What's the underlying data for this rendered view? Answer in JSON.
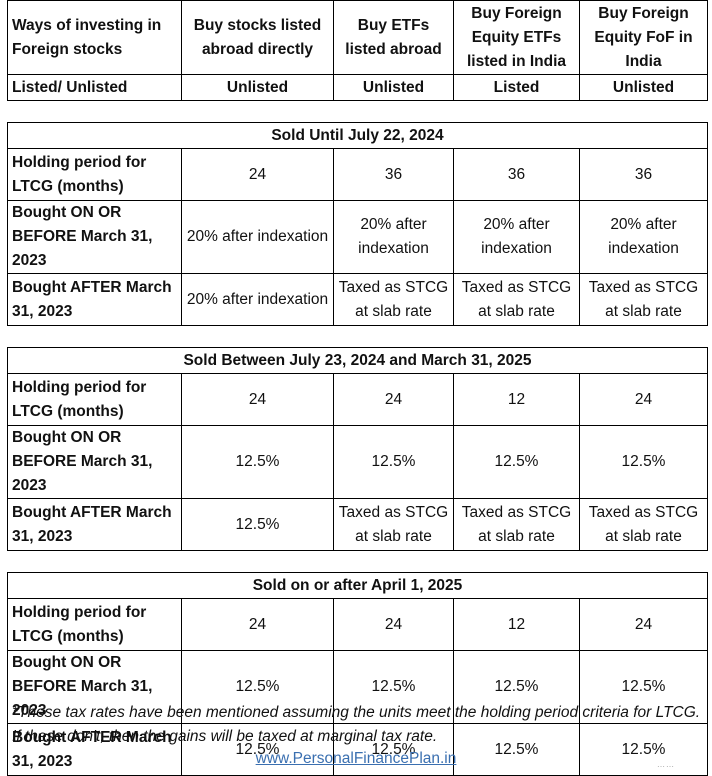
{
  "header": {
    "col0": "Ways of investing in Foreign stocks",
    "columns": [
      "Buy stocks listed abroad directly",
      "Buy ETFs listed abroad",
      "Buy Foreign Equity ETFs listed in India",
      "Buy Foreign Equity FoF in India"
    ]
  },
  "listing": {
    "label": "Listed/ Unlisted",
    "values": [
      "Unlisted",
      "Unlisted",
      "Listed",
      "Unlisted"
    ]
  },
  "sections": [
    {
      "title": "Sold Until July 22, 2024",
      "rows": [
        {
          "label": "Holding period for LTCG (months)",
          "values": [
            "24",
            "36",
            "36",
            "36"
          ]
        },
        {
          "label": "Bought ON OR BEFORE March 31, 2023",
          "values": [
            "20% after indexation",
            "20% after indexation",
            "20% after indexation",
            "20% after indexation"
          ]
        },
        {
          "label": "Bought AFTER March 31, 2023",
          "values": [
            "20% after indexation",
            "Taxed as STCG at slab rate",
            "Taxed as STCG at slab rate",
            "Taxed as STCG at slab rate"
          ]
        }
      ]
    },
    {
      "title": "Sold Between July 23, 2024 and March 31, 2025",
      "rows": [
        {
          "label": "Holding period for LTCG (months)",
          "values": [
            "24",
            "24",
            "12",
            "24"
          ]
        },
        {
          "label": "Bought ON OR BEFORE March 31, 2023",
          "values": [
            "12.5%",
            "12.5%",
            "12.5%",
            "12.5%"
          ]
        },
        {
          "label": "Bought AFTER March 31, 2023",
          "values": [
            "12.5%",
            "Taxed as STCG at slab rate",
            "Taxed as STCG at slab rate",
            "Taxed as STCG at slab rate"
          ]
        }
      ]
    },
    {
      "title": "Sold on or after April 1, 2025",
      "rows": [
        {
          "label": "Holding period for LTCG (months)",
          "values": [
            "24",
            "24",
            "12",
            "24"
          ]
        },
        {
          "label": "Bought ON OR BEFORE March 31, 2023",
          "values": [
            "12.5%",
            "12.5%",
            "12.5%",
            "12.5%"
          ]
        },
        {
          "label": "Bought AFTER March 31, 2023",
          "values": [
            "12.5%",
            "12.5%",
            "12.5%",
            "12.5%"
          ]
        }
      ]
    }
  ],
  "footnote": "*These tax rates have been mentioned assuming the units meet the holding period criteria for LTCG. If these don't, then the gains will be taxed at marginal tax rate.",
  "link_text": "www.PersonalFinancePlan.in"
}
